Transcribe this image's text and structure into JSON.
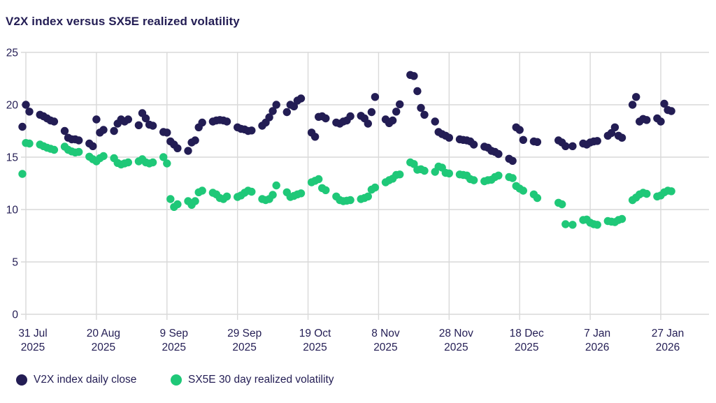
{
  "title": "V2X index versus SX5E realized volatility",
  "colors": {
    "navy": "#231D54",
    "green": "#1FC878",
    "grid": "#D9D9D9",
    "text": "#231D54",
    "background": "#FFFFFF"
  },
  "legend": {
    "items": [
      {
        "label": "V2X index daily close",
        "color": "#231D54"
      },
      {
        "label": "SX5E 30 day realized volatility",
        "color": "#1FC878"
      }
    ]
  },
  "chart_data": {
    "type": "scatter",
    "title": "V2X index versus SX5E realized volatility",
    "xlabel": "",
    "ylabel": "",
    "grid": true,
    "legend_position": "bottom-left",
    "ylim": [
      0,
      25
    ],
    "y_ticks": [
      0,
      5,
      10,
      15,
      20,
      25
    ],
    "x_range": [
      "2025-07-30",
      "2026-01-30"
    ],
    "x_ticks": [
      {
        "date": "2025-07-31",
        "label": "31 Jul",
        "year": "2025"
      },
      {
        "date": "2025-08-20",
        "label": "20 Aug",
        "year": "2025"
      },
      {
        "date": "2025-09-09",
        "label": "9 Sep",
        "year": "2025"
      },
      {
        "date": "2025-09-29",
        "label": "29 Sep",
        "year": "2025"
      },
      {
        "date": "2025-10-19",
        "label": "19 Oct",
        "year": "2025"
      },
      {
        "date": "2025-11-08",
        "label": "8 Nov",
        "year": "2025"
      },
      {
        "date": "2025-11-28",
        "label": "28 Nov",
        "year": "2025"
      },
      {
        "date": "2025-12-18",
        "label": "18 Dec",
        "year": "2025"
      },
      {
        "date": "2026-01-07",
        "label": "7 Jan",
        "year": "2026"
      },
      {
        "date": "2026-01-27",
        "label": "27 Jan",
        "year": "2026"
      }
    ],
    "series": [
      {
        "name": "V2X index daily close",
        "color": "#231D54",
        "points": [
          [
            "2025-07-30",
            17.9
          ],
          [
            "2025-07-31",
            20.0
          ],
          [
            "2025-08-01",
            19.35
          ],
          [
            "2025-08-04",
            19.05
          ],
          [
            "2025-08-05",
            18.9
          ],
          [
            "2025-08-06",
            18.7
          ],
          [
            "2025-08-07",
            18.5
          ],
          [
            "2025-08-08",
            18.4
          ],
          [
            "2025-08-11",
            17.5
          ],
          [
            "2025-08-12",
            16.85
          ],
          [
            "2025-08-13",
            16.7
          ],
          [
            "2025-08-14",
            16.7
          ],
          [
            "2025-08-15",
            16.6
          ],
          [
            "2025-08-18",
            16.3
          ],
          [
            "2025-08-19",
            16.05
          ],
          [
            "2025-08-20",
            18.6
          ],
          [
            "2025-08-21",
            17.35
          ],
          [
            "2025-08-22",
            17.6
          ],
          [
            "2025-08-25",
            17.5
          ],
          [
            "2025-08-26",
            18.2
          ],
          [
            "2025-08-27",
            18.6
          ],
          [
            "2025-08-28",
            18.4
          ],
          [
            "2025-08-29",
            18.6
          ],
          [
            "2025-09-01",
            18.05
          ],
          [
            "2025-09-02",
            19.2
          ],
          [
            "2025-09-03",
            18.7
          ],
          [
            "2025-09-04",
            18.1
          ],
          [
            "2025-09-05",
            18.0
          ],
          [
            "2025-09-08",
            17.4
          ],
          [
            "2025-09-09",
            17.35
          ],
          [
            "2025-09-10",
            16.5
          ],
          [
            "2025-09-11",
            16.2
          ],
          [
            "2025-09-12",
            15.85
          ],
          [
            "2025-09-15",
            15.6
          ],
          [
            "2025-09-16",
            16.4
          ],
          [
            "2025-09-17",
            16.6
          ],
          [
            "2025-09-18",
            17.85
          ],
          [
            "2025-09-19",
            18.3
          ],
          [
            "2025-09-22",
            18.4
          ],
          [
            "2025-09-23",
            18.5
          ],
          [
            "2025-09-24",
            18.55
          ],
          [
            "2025-09-25",
            18.5
          ],
          [
            "2025-09-26",
            18.4
          ],
          [
            "2025-09-29",
            17.85
          ],
          [
            "2025-09-30",
            17.7
          ],
          [
            "2025-10-01",
            17.65
          ],
          [
            "2025-10-02",
            17.5
          ],
          [
            "2025-10-03",
            17.55
          ],
          [
            "2025-10-06",
            18.0
          ],
          [
            "2025-10-07",
            18.3
          ],
          [
            "2025-10-08",
            18.8
          ],
          [
            "2025-10-09",
            19.4
          ],
          [
            "2025-10-10",
            20.0
          ],
          [
            "2025-10-13",
            19.3
          ],
          [
            "2025-10-14",
            20.0
          ],
          [
            "2025-10-15",
            19.85
          ],
          [
            "2025-10-16",
            20.4
          ],
          [
            "2025-10-17",
            20.6
          ],
          [
            "2025-10-20",
            17.35
          ],
          [
            "2025-10-21",
            16.95
          ],
          [
            "2025-10-22",
            18.85
          ],
          [
            "2025-10-23",
            18.9
          ],
          [
            "2025-10-24",
            18.7
          ],
          [
            "2025-10-27",
            18.3
          ],
          [
            "2025-10-28",
            18.2
          ],
          [
            "2025-10-29",
            18.4
          ],
          [
            "2025-10-30",
            18.5
          ],
          [
            "2025-10-31",
            18.9
          ],
          [
            "2025-11-03",
            18.95
          ],
          [
            "2025-11-04",
            18.7
          ],
          [
            "2025-11-05",
            18.2
          ],
          [
            "2025-11-06",
            19.3
          ],
          [
            "2025-11-07",
            20.75
          ],
          [
            "2025-11-10",
            18.6
          ],
          [
            "2025-11-11",
            18.25
          ],
          [
            "2025-11-12",
            18.5
          ],
          [
            "2025-11-13",
            19.35
          ],
          [
            "2025-11-14",
            20.05
          ],
          [
            "2025-11-17",
            22.85
          ],
          [
            "2025-11-18",
            22.75
          ],
          [
            "2025-11-19",
            21.3
          ],
          [
            "2025-11-20",
            19.7
          ],
          [
            "2025-11-21",
            19.05
          ],
          [
            "2025-11-24",
            18.4
          ],
          [
            "2025-11-25",
            17.4
          ],
          [
            "2025-11-26",
            17.2
          ],
          [
            "2025-11-27",
            17.05
          ],
          [
            "2025-11-28",
            16.85
          ],
          [
            "2025-12-01",
            16.7
          ],
          [
            "2025-12-02",
            16.65
          ],
          [
            "2025-12-03",
            16.6
          ],
          [
            "2025-12-04",
            16.5
          ],
          [
            "2025-12-05",
            16.2
          ],
          [
            "2025-12-08",
            16.0
          ],
          [
            "2025-12-09",
            15.9
          ],
          [
            "2025-12-10",
            15.6
          ],
          [
            "2025-12-11",
            15.5
          ],
          [
            "2025-12-12",
            15.3
          ],
          [
            "2025-12-15",
            14.85
          ],
          [
            "2025-12-16",
            14.65
          ],
          [
            "2025-12-17",
            17.85
          ],
          [
            "2025-12-18",
            17.6
          ],
          [
            "2025-12-19",
            16.65
          ],
          [
            "2025-12-22",
            16.5
          ],
          [
            "2025-12-23",
            16.45
          ],
          [
            "2025-12-29",
            16.6
          ],
          [
            "2025-12-30",
            16.4
          ],
          [
            "2025-12-31",
            16.05
          ],
          [
            "2026-01-02",
            16.05
          ],
          [
            "2026-01-05",
            16.3
          ],
          [
            "2026-01-06",
            16.2
          ],
          [
            "2026-01-07",
            16.4
          ],
          [
            "2026-01-08",
            16.5
          ],
          [
            "2026-01-09",
            16.55
          ],
          [
            "2026-01-12",
            17.05
          ],
          [
            "2026-01-13",
            17.3
          ],
          [
            "2026-01-14",
            17.85
          ],
          [
            "2026-01-15",
            17.05
          ],
          [
            "2026-01-16",
            16.85
          ],
          [
            "2026-01-19",
            20.0
          ],
          [
            "2026-01-20",
            20.75
          ],
          [
            "2026-01-21",
            18.4
          ],
          [
            "2026-01-22",
            18.65
          ],
          [
            "2026-01-23",
            18.55
          ],
          [
            "2026-01-26",
            18.7
          ],
          [
            "2026-01-27",
            18.4
          ],
          [
            "2026-01-28",
            20.1
          ],
          [
            "2026-01-29",
            19.5
          ],
          [
            "2026-01-30",
            19.4
          ]
        ]
      },
      {
        "name": "SX5E 30 day realized volatility",
        "color": "#1FC878",
        "points": [
          [
            "2025-07-30",
            13.4
          ],
          [
            "2025-07-31",
            16.35
          ],
          [
            "2025-08-01",
            16.3
          ],
          [
            "2025-08-04",
            16.2
          ],
          [
            "2025-08-05",
            16.05
          ],
          [
            "2025-08-06",
            15.9
          ],
          [
            "2025-08-07",
            15.8
          ],
          [
            "2025-08-08",
            15.7
          ],
          [
            "2025-08-11",
            16.0
          ],
          [
            "2025-08-12",
            15.7
          ],
          [
            "2025-08-13",
            15.55
          ],
          [
            "2025-08-14",
            15.45
          ],
          [
            "2025-08-15",
            15.5
          ],
          [
            "2025-08-18",
            15.05
          ],
          [
            "2025-08-19",
            14.8
          ],
          [
            "2025-08-20",
            14.6
          ],
          [
            "2025-08-21",
            14.9
          ],
          [
            "2025-08-22",
            15.1
          ],
          [
            "2025-08-25",
            14.9
          ],
          [
            "2025-08-26",
            14.45
          ],
          [
            "2025-08-27",
            14.3
          ],
          [
            "2025-08-28",
            14.4
          ],
          [
            "2025-08-29",
            14.5
          ],
          [
            "2025-09-01",
            14.6
          ],
          [
            "2025-09-02",
            14.8
          ],
          [
            "2025-09-03",
            14.5
          ],
          [
            "2025-09-04",
            14.4
          ],
          [
            "2025-09-05",
            14.5
          ],
          [
            "2025-09-08",
            15.0
          ],
          [
            "2025-09-09",
            14.4
          ],
          [
            "2025-09-10",
            11.0
          ],
          [
            "2025-09-11",
            10.25
          ],
          [
            "2025-09-12",
            10.5
          ],
          [
            "2025-09-15",
            10.8
          ],
          [
            "2025-09-16",
            10.45
          ],
          [
            "2025-09-17",
            10.8
          ],
          [
            "2025-09-18",
            11.65
          ],
          [
            "2025-09-19",
            11.8
          ],
          [
            "2025-09-22",
            11.6
          ],
          [
            "2025-09-23",
            11.45
          ],
          [
            "2025-09-24",
            11.1
          ],
          [
            "2025-09-25",
            11.0
          ],
          [
            "2025-09-26",
            11.25
          ],
          [
            "2025-09-29",
            11.2
          ],
          [
            "2025-09-30",
            11.35
          ],
          [
            "2025-10-01",
            11.6
          ],
          [
            "2025-10-02",
            11.8
          ],
          [
            "2025-10-03",
            11.7
          ],
          [
            "2025-10-06",
            11.0
          ],
          [
            "2025-10-07",
            10.9
          ],
          [
            "2025-10-08",
            11.0
          ],
          [
            "2025-10-09",
            11.4
          ],
          [
            "2025-10-10",
            12.3
          ],
          [
            "2025-10-13",
            11.65
          ],
          [
            "2025-10-14",
            11.2
          ],
          [
            "2025-10-15",
            11.3
          ],
          [
            "2025-10-16",
            11.45
          ],
          [
            "2025-10-17",
            11.55
          ],
          [
            "2025-10-20",
            12.6
          ],
          [
            "2025-10-21",
            12.75
          ],
          [
            "2025-10-22",
            12.9
          ],
          [
            "2025-10-23",
            12.05
          ],
          [
            "2025-10-24",
            11.85
          ],
          [
            "2025-10-27",
            11.25
          ],
          [
            "2025-10-28",
            10.9
          ],
          [
            "2025-10-29",
            10.8
          ],
          [
            "2025-10-30",
            10.85
          ],
          [
            "2025-10-31",
            10.9
          ],
          [
            "2025-11-03",
            11.0
          ],
          [
            "2025-11-04",
            11.1
          ],
          [
            "2025-11-05",
            11.25
          ],
          [
            "2025-11-06",
            11.9
          ],
          [
            "2025-11-07",
            12.1
          ],
          [
            "2025-11-10",
            12.6
          ],
          [
            "2025-11-11",
            12.8
          ],
          [
            "2025-11-12",
            12.95
          ],
          [
            "2025-11-13",
            13.3
          ],
          [
            "2025-11-14",
            13.35
          ],
          [
            "2025-11-17",
            14.5
          ],
          [
            "2025-11-18",
            14.35
          ],
          [
            "2025-11-19",
            13.8
          ],
          [
            "2025-11-20",
            13.85
          ],
          [
            "2025-11-21",
            13.7
          ],
          [
            "2025-11-24",
            13.6
          ],
          [
            "2025-11-25",
            14.1
          ],
          [
            "2025-11-26",
            14.0
          ],
          [
            "2025-11-27",
            13.5
          ],
          [
            "2025-11-28",
            13.45
          ],
          [
            "2025-12-01",
            13.35
          ],
          [
            "2025-12-02",
            13.3
          ],
          [
            "2025-12-03",
            13.25
          ],
          [
            "2025-12-04",
            12.9
          ],
          [
            "2025-12-05",
            12.8
          ],
          [
            "2025-12-08",
            12.7
          ],
          [
            "2025-12-09",
            12.8
          ],
          [
            "2025-12-10",
            12.85
          ],
          [
            "2025-12-11",
            13.1
          ],
          [
            "2025-12-12",
            13.25
          ],
          [
            "2025-12-15",
            13.1
          ],
          [
            "2025-12-16",
            13.0
          ],
          [
            "2025-12-17",
            12.25
          ],
          [
            "2025-12-18",
            12.0
          ],
          [
            "2025-12-19",
            11.8
          ],
          [
            "2025-12-22",
            11.45
          ],
          [
            "2025-12-23",
            11.1
          ],
          [
            "2025-12-29",
            10.65
          ],
          [
            "2025-12-30",
            10.5
          ],
          [
            "2025-12-31",
            8.6
          ],
          [
            "2026-01-02",
            8.55
          ],
          [
            "2026-01-05",
            9.0
          ],
          [
            "2026-01-06",
            9.05
          ],
          [
            "2026-01-07",
            8.75
          ],
          [
            "2026-01-08",
            8.6
          ],
          [
            "2026-01-09",
            8.55
          ],
          [
            "2026-01-12",
            8.9
          ],
          [
            "2026-01-13",
            8.85
          ],
          [
            "2026-01-14",
            8.8
          ],
          [
            "2026-01-15",
            9.0
          ],
          [
            "2026-01-16",
            9.1
          ],
          [
            "2026-01-19",
            10.9
          ],
          [
            "2026-01-20",
            11.15
          ],
          [
            "2026-01-21",
            11.45
          ],
          [
            "2026-01-22",
            11.6
          ],
          [
            "2026-01-23",
            11.5
          ],
          [
            "2026-01-26",
            11.25
          ],
          [
            "2026-01-27",
            11.35
          ],
          [
            "2026-01-28",
            11.65
          ],
          [
            "2026-01-29",
            11.8
          ],
          [
            "2026-01-30",
            11.75
          ]
        ]
      }
    ]
  }
}
